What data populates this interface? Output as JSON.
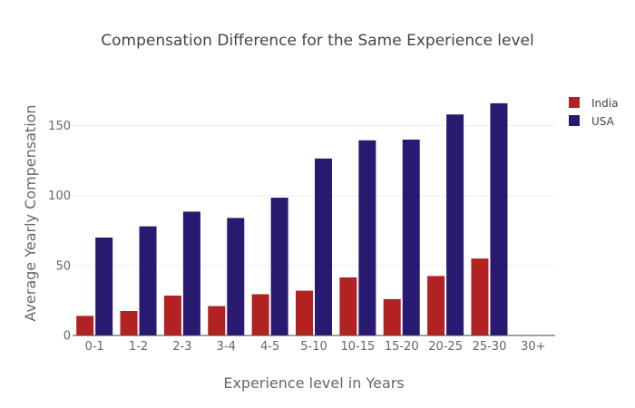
{
  "chart_data": {
    "type": "bar",
    "title": "Compensation Difference for the Same Experience level",
    "xlabel": "Experience level in Years",
    "ylabel": "Average Yearly Compensation",
    "categories": [
      "0-1",
      "1-2",
      "2-3",
      "3-4",
      "4-5",
      "5-10",
      "10-15",
      "15-20",
      "20-25",
      "25-30",
      "30+"
    ],
    "series": [
      {
        "name": "India",
        "color": "#b22222",
        "values": [
          14,
          17.5,
          28.5,
          21,
          29.5,
          32,
          41.5,
          26,
          42.5,
          55,
          null
        ]
      },
      {
        "name": "USA",
        "color": "#281a70",
        "values": [
          70,
          78,
          88.5,
          84,
          98.5,
          126.5,
          139.5,
          140,
          158,
          166,
          null
        ]
      }
    ],
    "ylim": [
      0,
      175
    ],
    "yticks": [
      0,
      50,
      100,
      150
    ],
    "grid": true,
    "legend_position": "top-right"
  }
}
